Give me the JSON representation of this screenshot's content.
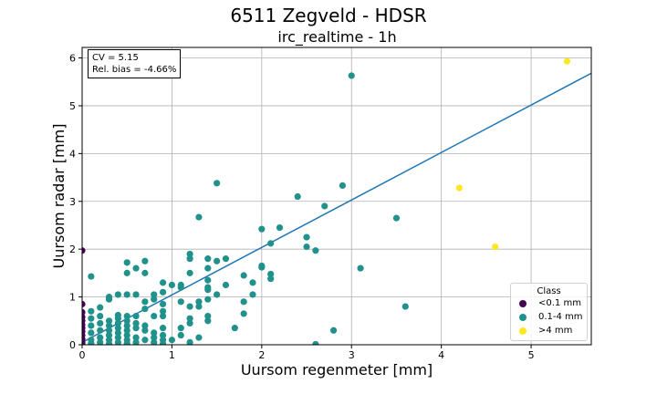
{
  "figure": {
    "suptitle": "6511 Zegveld - HDSR",
    "title": "irc_realtime - 1h"
  },
  "stats": {
    "cv": "CV = 5.15",
    "bias": "Rel. bias = -4.66%"
  },
  "legend": {
    "title": "Class",
    "entries": [
      {
        "label": "<0.1 mm",
        "color": "#440154"
      },
      {
        "label": "0.1-4 mm",
        "color": "#21918c"
      },
      {
        "label": ">4 mm",
        "color": "#fde725"
      }
    ]
  },
  "chart_data": {
    "type": "scatter",
    "xlabel": "Uursom regenmeter [mm]",
    "ylabel": "Uursom radar [mm]",
    "xlim": [
      0,
      5.67
    ],
    "ylim": [
      0,
      6.22
    ],
    "xticks": [
      "0",
      "1",
      "2",
      "3",
      "4",
      "5"
    ],
    "yticks": [
      "0",
      "1",
      "2",
      "3",
      "4",
      "5",
      "6"
    ],
    "grid": true,
    "legend_position": "lower right",
    "fit_line": {
      "x": [
        0,
        5.67
      ],
      "y": [
        0.05,
        5.68
      ],
      "color": "#1f77b4"
    },
    "series": [
      {
        "name": "<0.1 mm",
        "color": "#440154",
        "points": [
          [
            0,
            1.97
          ],
          [
            0,
            0.85
          ],
          [
            0,
            0.68
          ],
          [
            0,
            0.58
          ],
          [
            0,
            0.5
          ],
          [
            0,
            0.42
          ],
          [
            0,
            0.35
          ],
          [
            0,
            0.28
          ],
          [
            0,
            0.2
          ],
          [
            0,
            0.12
          ],
          [
            0,
            0.05
          ],
          [
            0,
            0.02
          ]
        ]
      },
      {
        "name": "0.1-4 mm",
        "color": "#21918c",
        "points": [
          [
            0.1,
            1.43
          ],
          [
            0.1,
            0.7
          ],
          [
            0.1,
            0.55
          ],
          [
            0.1,
            0.4
          ],
          [
            0.1,
            0.25
          ],
          [
            0.1,
            0.1
          ],
          [
            0.1,
            0.03
          ],
          [
            0.2,
            0.78
          ],
          [
            0.2,
            0.6
          ],
          [
            0.2,
            0.45
          ],
          [
            0.2,
            0.3
          ],
          [
            0.2,
            0.15
          ],
          [
            0.2,
            0.05
          ],
          [
            0.3,
            1.0
          ],
          [
            0.3,
            0.95
          ],
          [
            0.3,
            0.5
          ],
          [
            0.3,
            0.4
          ],
          [
            0.3,
            0.3
          ],
          [
            0.3,
            0.2
          ],
          [
            0.3,
            0.1
          ],
          [
            0.3,
            0.02
          ],
          [
            0.4,
            1.05
          ],
          [
            0.4,
            0.62
          ],
          [
            0.4,
            0.55
          ],
          [
            0.4,
            0.45
          ],
          [
            0.4,
            0.35
          ],
          [
            0.4,
            0.25
          ],
          [
            0.4,
            0.15
          ],
          [
            0.4,
            0.05
          ],
          [
            0.5,
            1.72
          ],
          [
            0.5,
            1.5
          ],
          [
            0.5,
            1.05
          ],
          [
            0.5,
            0.6
          ],
          [
            0.5,
            0.5
          ],
          [
            0.5,
            0.4
          ],
          [
            0.5,
            0.3
          ],
          [
            0.5,
            0.2
          ],
          [
            0.5,
            0.1
          ],
          [
            0.5,
            0.03
          ],
          [
            0.6,
            1.6
          ],
          [
            0.6,
            1.05
          ],
          [
            0.6,
            0.6
          ],
          [
            0.6,
            0.45
          ],
          [
            0.6,
            0.35
          ],
          [
            0.6,
            0.15
          ],
          [
            0.6,
            0.05
          ],
          [
            0.7,
            1.75
          ],
          [
            0.7,
            1.5
          ],
          [
            0.7,
            0.9
          ],
          [
            0.7,
            0.75
          ],
          [
            0.7,
            0.4
          ],
          [
            0.7,
            0.3
          ],
          [
            0.7,
            0.1
          ],
          [
            0.8,
            1.05
          ],
          [
            0.8,
            0.95
          ],
          [
            0.8,
            0.6
          ],
          [
            0.8,
            0.25
          ],
          [
            0.8,
            0.15
          ],
          [
            0.8,
            0.05
          ],
          [
            0.9,
            1.3
          ],
          [
            0.9,
            1.1
          ],
          [
            0.9,
            0.85
          ],
          [
            0.9,
            0.7
          ],
          [
            0.9,
            0.6
          ],
          [
            0.9,
            0.35
          ],
          [
            0.9,
            0.2
          ],
          [
            0.9,
            0.1
          ],
          [
            0.9,
            0.02
          ],
          [
            1.0,
            1.25
          ],
          [
            1.0,
            0.1
          ],
          [
            1.1,
            1.25
          ],
          [
            1.1,
            1.2
          ],
          [
            1.1,
            0.9
          ],
          [
            1.1,
            0.35
          ],
          [
            1.1,
            0.2
          ],
          [
            1.2,
            1.9
          ],
          [
            1.2,
            1.8
          ],
          [
            1.2,
            1.5
          ],
          [
            1.2,
            0.8
          ],
          [
            1.2,
            0.55
          ],
          [
            1.2,
            0.45
          ],
          [
            1.2,
            0.05
          ],
          [
            1.3,
            2.67
          ],
          [
            1.3,
            0.9
          ],
          [
            1.3,
            0.8
          ],
          [
            1.3,
            0.15
          ],
          [
            1.4,
            1.8
          ],
          [
            1.4,
            1.6
          ],
          [
            1.4,
            1.35
          ],
          [
            1.4,
            1.2
          ],
          [
            1.4,
            1.15
          ],
          [
            1.4,
            0.95
          ],
          [
            1.4,
            0.6
          ],
          [
            1.4,
            0.5
          ],
          [
            1.5,
            3.38
          ],
          [
            1.5,
            1.75
          ],
          [
            1.5,
            1.05
          ],
          [
            1.6,
            1.8
          ],
          [
            1.6,
            1.25
          ],
          [
            1.7,
            0.35
          ],
          [
            1.8,
            1.45
          ],
          [
            1.8,
            0.9
          ],
          [
            1.8,
            0.65
          ],
          [
            1.9,
            1.3
          ],
          [
            1.9,
            1.05
          ],
          [
            2.0,
            2.42
          ],
          [
            2.0,
            1.65
          ],
          [
            2.0,
            1.62
          ],
          [
            2.1,
            2.12
          ],
          [
            2.1,
            1.48
          ],
          [
            2.1,
            1.38
          ],
          [
            2.2,
            2.45
          ],
          [
            2.4,
            3.1
          ],
          [
            2.5,
            2.25
          ],
          [
            2.5,
            2.05
          ],
          [
            2.6,
            1.97
          ],
          [
            2.6,
            0.01
          ],
          [
            2.7,
            2.9
          ],
          [
            2.8,
            0.3
          ],
          [
            2.9,
            3.33
          ],
          [
            3.0,
            5.63
          ],
          [
            3.1,
            1.6
          ],
          [
            3.5,
            2.65
          ],
          [
            3.6,
            0.8
          ]
        ]
      },
      {
        "name": ">4 mm",
        "color": "#fde725",
        "points": [
          [
            4.2,
            3.28
          ],
          [
            4.6,
            2.05
          ],
          [
            5.4,
            5.93
          ]
        ]
      }
    ]
  }
}
